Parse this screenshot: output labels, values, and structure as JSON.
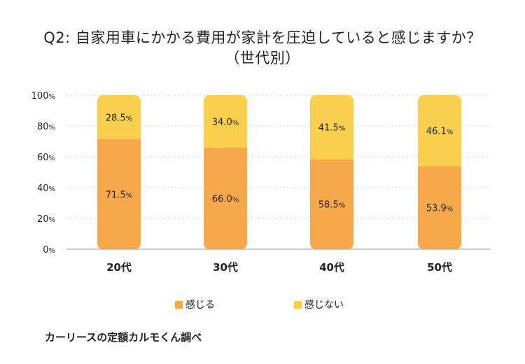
{
  "title_line1": "Q2: 自家用車にかかる費用が家計を圧迫していると感じますか？",
  "title_line2": "（世代別）",
  "source": "カーリースの定額カルモくん調べ",
  "colors": {
    "feel": "#F7A84A",
    "not_feel": "#F9D04E",
    "grid": "#CCCCCC",
    "axis": "#999999"
  },
  "chart_data": {
    "type": "bar",
    "stacked": true,
    "categories": [
      "20代",
      "30代",
      "40代",
      "50代"
    ],
    "series": [
      {
        "name": "感じる",
        "values": [
          71.5,
          66.0,
          58.5,
          53.9
        ]
      },
      {
        "name": "感じない",
        "values": [
          28.5,
          34.0,
          41.5,
          46.1
        ]
      }
    ],
    "value_labels": {
      "feel": [
        "71.5",
        "66.0",
        "58.5",
        "53.9"
      ],
      "not_feel": [
        "28.5",
        "34.0",
        "41.5",
        "46.1"
      ]
    },
    "unit": "%",
    "ylim": [
      0,
      100
    ],
    "yticks": [
      0,
      20,
      40,
      60,
      80,
      100
    ],
    "ytick_labels": [
      "0",
      "20",
      "40",
      "60",
      "80",
      "100"
    ],
    "grid": true,
    "legend": "bottom-center",
    "title": "Q2: 自家用車にかかる費用が家計を圧迫していると感じますか？（世代別）"
  }
}
